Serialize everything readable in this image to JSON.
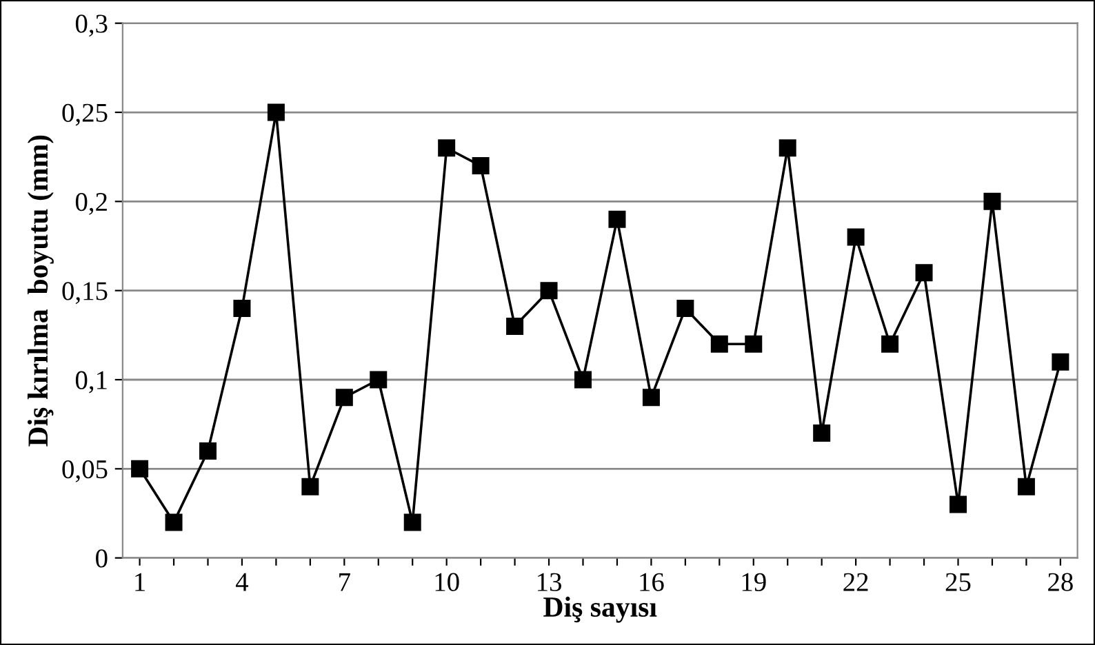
{
  "chart_data": {
    "type": "line",
    "xlabel": "Diş sayısı",
    "ylabel": "Diş kırılma  boyutu (mm)",
    "categories": [
      "1",
      null,
      null,
      "4",
      null,
      null,
      "7",
      null,
      null,
      "10",
      null,
      null,
      "13",
      null,
      null,
      "16",
      null,
      null,
      "19",
      null,
      null,
      "22",
      null,
      null,
      "25",
      null,
      null,
      "28"
    ],
    "series": [
      {
        "color": "#000000",
        "values": [
          0.05,
          0.02,
          0.06,
          0.14,
          0.25,
          0.04,
          0.09,
          0.1,
          0.02,
          0.23,
          0.22,
          0.13,
          0.15,
          0.1,
          0.19,
          0.09,
          0.14,
          0.12,
          0.12,
          0.23,
          0.07,
          0.18,
          0.12,
          0.16,
          0.03,
          0.2,
          0.04,
          0.11
        ]
      }
    ],
    "ylim": [
      0,
      0.3
    ],
    "yticks": [
      0,
      {
        "value": 0.05,
        "label": "0,05"
      },
      {
        "value": 0.1,
        "label": "0,1"
      },
      {
        "value": 0.15,
        "label": "0,15"
      },
      {
        "value": 0.2,
        "label": "0,2"
      },
      {
        "value": 0.25,
        "label": "0,25"
      },
      {
        "value": 0.3,
        "label": "0,3"
      }
    ],
    "grid": "y",
    "marker": "square",
    "line_style": "solid",
    "legend": false
  }
}
